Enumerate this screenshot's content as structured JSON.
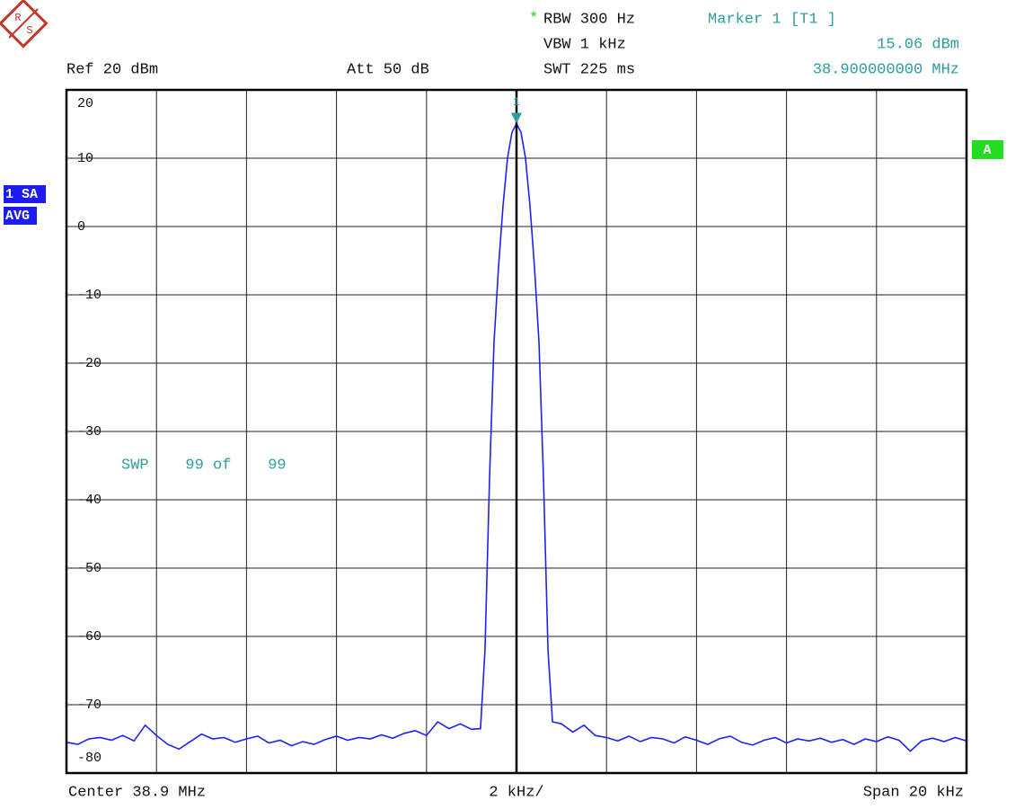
{
  "logo": {
    "top": "R",
    "bottom": "S"
  },
  "chart_data": {
    "type": "line",
    "header": {
      "ref": "Ref  20 dBm",
      "att": "Att  50 dB",
      "rbw_flag": "*",
      "rbw": "RBW 300 Hz",
      "vbw": "VBW 1 kHz",
      "swt": "SWT 225 ms"
    },
    "marker": {
      "title": "Marker 1 [T1 ]",
      "label": "1",
      "x": 0,
      "y": 15.06,
      "level": "15.06 dBm",
      "freq": "38.900000000 MHz"
    },
    "badges": {
      "trace": "1 SA",
      "mode": "AVG",
      "screen": "A"
    },
    "sweep": "SWP    99 of    99",
    "footer": {
      "center": "Center 38.9 MHz",
      "div": "2 kHz/",
      "span": "Span 20 kHz"
    },
    "color": "#2020f0",
    "grid": true,
    "xlim": [
      -10,
      10
    ],
    "xticks": [
      -10,
      -8,
      -6,
      -4,
      -2,
      0,
      2,
      4,
      6,
      8,
      10
    ],
    "ylim": [
      -80,
      20
    ],
    "yticks": [
      20,
      10,
      0,
      -10,
      -20,
      -30,
      -40,
      -50,
      -60,
      -70,
      -80
    ],
    "x": [
      -10,
      -9.75,
      -9.5,
      -9.25,
      -9,
      -8.75,
      -8.5,
      -8.25,
      -8,
      -7.75,
      -7.5,
      -7.25,
      -7,
      -6.75,
      -6.5,
      -6.25,
      -6,
      -5.75,
      -5.5,
      -5.25,
      -5,
      -4.75,
      -4.5,
      -4.25,
      -4,
      -3.75,
      -3.5,
      -3.25,
      -3,
      -2.75,
      -2.5,
      -2.25,
      -2,
      -1.75,
      -1.5,
      -1.25,
      -1,
      -0.8,
      -0.7,
      -0.6,
      -0.5,
      -0.4,
      -0.3,
      -0.2,
      -0.1,
      0,
      0.1,
      0.2,
      0.3,
      0.4,
      0.5,
      0.6,
      0.7,
      0.8,
      1,
      1.25,
      1.5,
      1.75,
      2,
      2.25,
      2.5,
      2.75,
      3,
      3.25,
      3.5,
      3.75,
      4,
      4.25,
      4.5,
      4.75,
      5,
      5.25,
      5.5,
      5.75,
      6,
      6.25,
      6.5,
      6.75,
      7,
      7.25,
      7.5,
      7.75,
      8,
      8.25,
      8.5,
      8.75,
      9,
      9.25,
      9.5,
      9.75,
      10
    ],
    "values": [
      -75.5,
      -75.8,
      -75,
      -74.8,
      -75.2,
      -74.5,
      -75.3,
      -73,
      -74.5,
      -75.8,
      -76.5,
      -75.4,
      -74.3,
      -75,
      -74.8,
      -75.5,
      -75,
      -74.6,
      -75.6,
      -75.2,
      -76,
      -75.4,
      -75.8,
      -75.1,
      -74.6,
      -75.2,
      -74.8,
      -75,
      -74.4,
      -74.9,
      -74.2,
      -73.8,
      -74.5,
      -72.5,
      -73.5,
      -72.8,
      -73.6,
      -73.5,
      -62,
      -37,
      -17,
      -6,
      3,
      10,
      13.8,
      15.06,
      13.8,
      10,
      3,
      -6,
      -17,
      -37,
      -62,
      -72.5,
      -72.8,
      -74,
      -73,
      -74.5,
      -74.8,
      -75.3,
      -74.6,
      -75.4,
      -74.8,
      -75,
      -75.6,
      -74.7,
      -75.2,
      -75.8,
      -75,
      -74.6,
      -75.5,
      -75.9,
      -75.2,
      -74.8,
      -75.6,
      -75,
      -75.3,
      -74.9,
      -75.5,
      -75.1,
      -75.8,
      -75,
      -75.4,
      -74.7,
      -75.2,
      -76.8,
      -75.3,
      -74.9,
      -75.4,
      -74.8,
      -75.3
    ]
  }
}
